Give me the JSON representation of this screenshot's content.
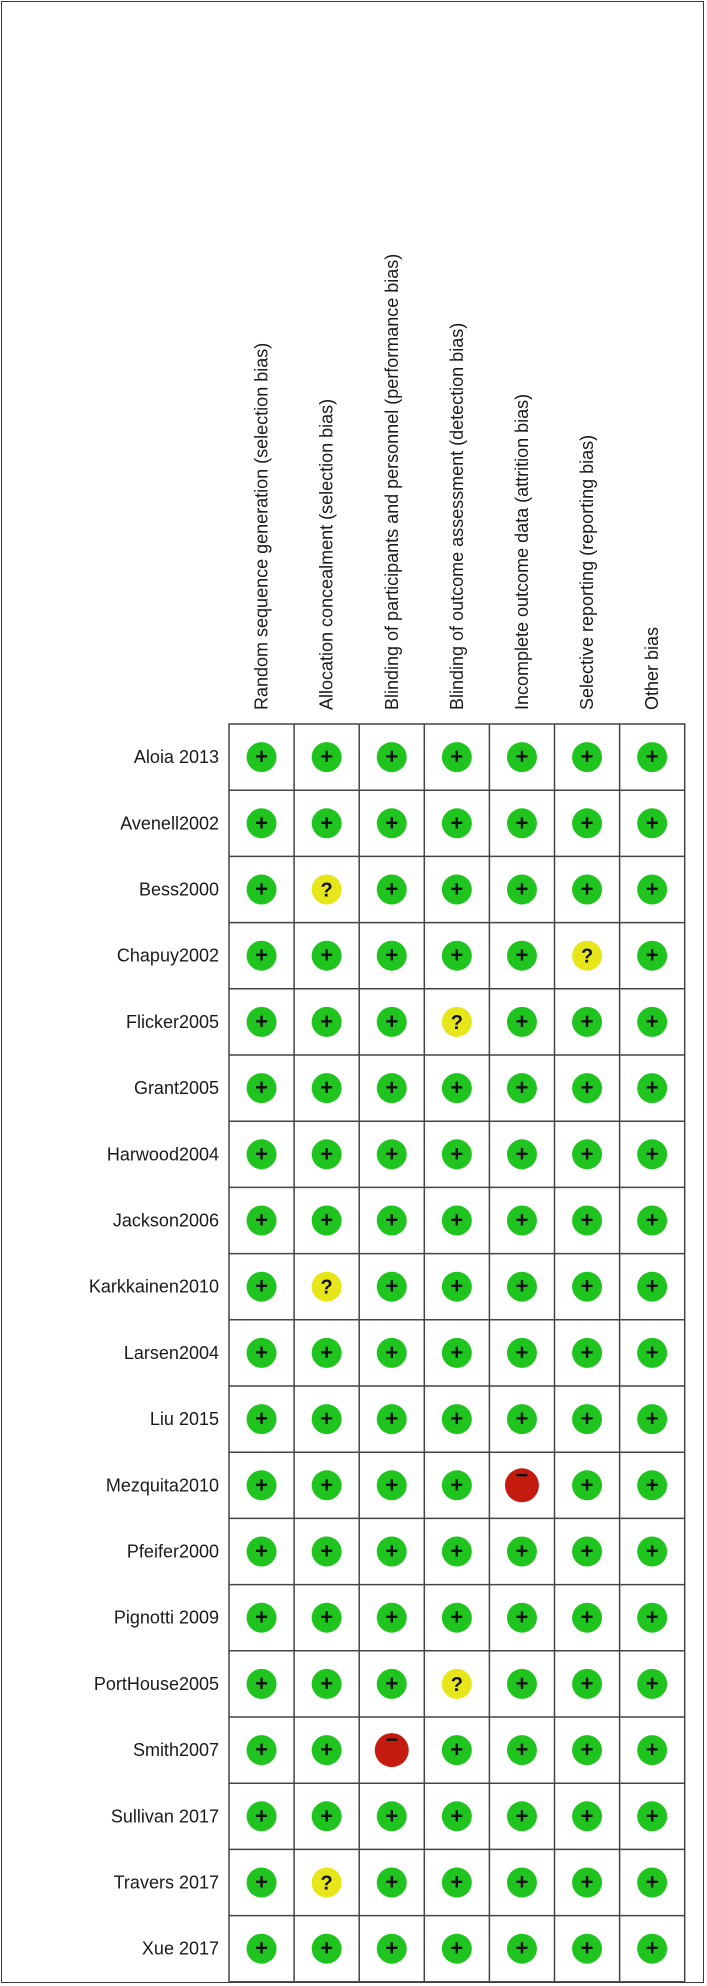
{
  "chart_data": {
    "type": "table",
    "columns": [
      "Random sequence generation (selection bias)",
      "Allocation concealment (selection bias)",
      "Blinding of participants and personnel (performance bias)",
      "Blinding of outcome assessment (detection bias)",
      "Incomplete outcome data (attrition bias)",
      "Selective reporting (reporting bias)",
      "Other bias"
    ],
    "rows": [
      "Aloia 2013",
      "Avenell2002",
      "Bess2000",
      "Chapuy2002",
      "Flicker2005",
      "Grant2005",
      "Harwood2004",
      "Jackson2006",
      "Karkkainen2010",
      "Larsen2004",
      "Liu 2015",
      "Mezquita2010",
      "Pfeifer2000",
      "Pignotti 2009",
      "PortHouse2005",
      "Smith2007",
      "Sullivan 2017",
      "Travers 2017",
      "Xue 2017"
    ],
    "values": [
      [
        "low",
        "low",
        "low",
        "low",
        "low",
        "low",
        "low"
      ],
      [
        "low",
        "low",
        "low",
        "low",
        "low",
        "low",
        "low"
      ],
      [
        "low",
        "unclear",
        "low",
        "low",
        "low",
        "low",
        "low"
      ],
      [
        "low",
        "low",
        "low",
        "low",
        "low",
        "unclear",
        "low"
      ],
      [
        "low",
        "low",
        "low",
        "unclear",
        "low",
        "low",
        "low"
      ],
      [
        "low",
        "low",
        "low",
        "low",
        "low",
        "low",
        "low"
      ],
      [
        "low",
        "low",
        "low",
        "low",
        "low",
        "low",
        "low"
      ],
      [
        "low",
        "low",
        "low",
        "low",
        "low",
        "low",
        "low"
      ],
      [
        "low",
        "unclear",
        "low",
        "low",
        "low",
        "low",
        "low"
      ],
      [
        "low",
        "low",
        "low",
        "low",
        "low",
        "low",
        "low"
      ],
      [
        "low",
        "low",
        "low",
        "low",
        "low",
        "low",
        "low"
      ],
      [
        "low",
        "low",
        "low",
        "low",
        "high",
        "low",
        "low"
      ],
      [
        "low",
        "low",
        "low",
        "low",
        "low",
        "low",
        "low"
      ],
      [
        "low",
        "low",
        "low",
        "low",
        "low",
        "low",
        "low"
      ],
      [
        "low",
        "low",
        "low",
        "unclear",
        "low",
        "low",
        "low"
      ],
      [
        "low",
        "low",
        "high",
        "low",
        "low",
        "low",
        "low"
      ],
      [
        "low",
        "low",
        "low",
        "low",
        "low",
        "low",
        "low"
      ],
      [
        "low",
        "unclear",
        "low",
        "low",
        "low",
        "low",
        "low"
      ],
      [
        "low",
        "low",
        "low",
        "low",
        "low",
        "low",
        "low"
      ]
    ],
    "levels": {
      "low": {
        "symbol": "+",
        "color": "#1fc41f"
      },
      "unclear": {
        "symbol": "?",
        "color": "#e6e61a"
      },
      "high": {
        "symbol": "−",
        "color": "#c41a0f"
      }
    }
  }
}
